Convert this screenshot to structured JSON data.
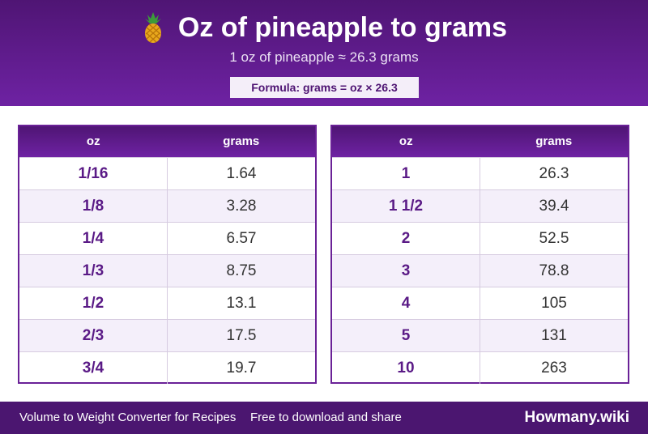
{
  "header": {
    "icon": "pineapple-icon",
    "title": "Oz of pineapple to grams",
    "subtitle": "1 oz of pineapple ≈ 26.3 grams",
    "formula": "Formula: grams = oz × 26.3"
  },
  "tables": {
    "left": {
      "col_oz": "oz",
      "col_grams": "grams",
      "rows": [
        {
          "oz": "1/16",
          "grams": "1.64"
        },
        {
          "oz": "1/8",
          "grams": "3.28"
        },
        {
          "oz": "1/4",
          "grams": "6.57"
        },
        {
          "oz": "1/3",
          "grams": "8.75"
        },
        {
          "oz": "1/2",
          "grams": "13.1"
        },
        {
          "oz": "2/3",
          "grams": "17.5"
        },
        {
          "oz": "3/4",
          "grams": "19.7"
        }
      ]
    },
    "right": {
      "col_oz": "oz",
      "col_grams": "grams",
      "rows": [
        {
          "oz": "1",
          "grams": "26.3"
        },
        {
          "oz": "1 1/2",
          "grams": "39.4"
        },
        {
          "oz": "2",
          "grams": "52.5"
        },
        {
          "oz": "3",
          "grams": "78.8"
        },
        {
          "oz": "4",
          "grams": "105"
        },
        {
          "oz": "5",
          "grams": "131"
        },
        {
          "oz": "10",
          "grams": "263"
        }
      ]
    }
  },
  "footer": {
    "left_text": "Volume to Weight Converter for Recipes",
    "mid_text": "Free to download and share",
    "brand": "Howmany.wiki"
  },
  "colors": {
    "header_bg": "#5b1a87",
    "accent": "#6a2197",
    "row_alt": "#f4effa",
    "footer_bg": "#4b1670"
  }
}
